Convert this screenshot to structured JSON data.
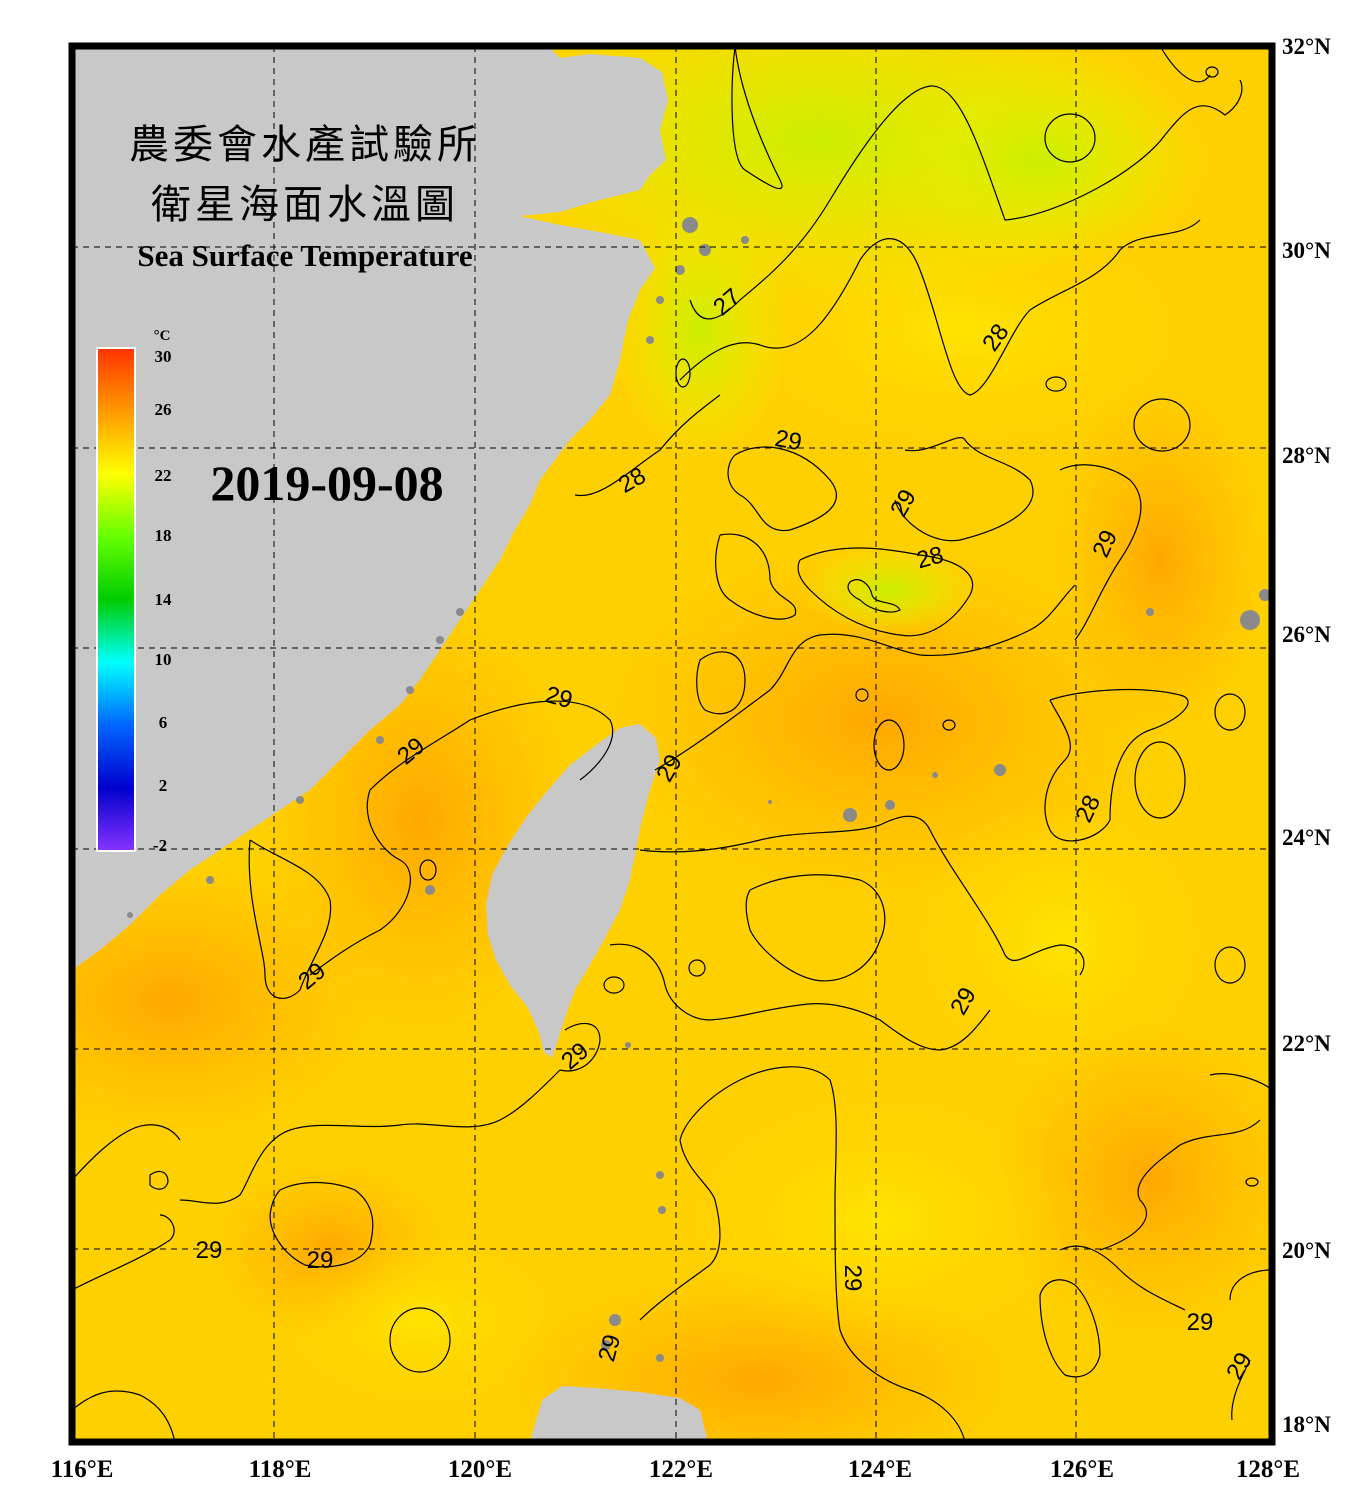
{
  "title": {
    "line1": "農委會水產試驗所",
    "line2": "衛星海面水溫圖",
    "english": "Sea Surface Temperature"
  },
  "date": "2019-09-08",
  "legend": {
    "unit": "°C",
    "ticks": [
      "30",
      "26",
      "22",
      "18",
      "14",
      "10",
      "6",
      "2",
      "-2"
    ],
    "colors": [
      "#ff3300",
      "#ff9900",
      "#ffff00",
      "#66ff00",
      "#00cc00",
      "#00ffff",
      "#0066ff",
      "#0000cc",
      "#8833ff"
    ]
  },
  "axes": {
    "longitude_labels": [
      "116°E",
      "118°E",
      "120°E",
      "122°E",
      "124°E",
      "126°E",
      "128°E"
    ],
    "latitude_labels": [
      "32°N",
      "30°N",
      "28°N",
      "26°N",
      "24°N",
      "22°N",
      "20°N",
      "18°N"
    ]
  },
  "contour_labels": [
    "27",
    "28",
    "28",
    "29",
    "29",
    "28",
    "29",
    "29",
    "29",
    "29",
    "28",
    "29",
    "29",
    "29",
    "29",
    "29",
    "29",
    "29",
    "29",
    "29",
    "29"
  ],
  "colors": {
    "land": "#c8c8c8",
    "sea_warm": "#ffb300",
    "sea_mid": "#ffd000",
    "sea_cool": "#d8f000",
    "frame": "#000000"
  }
}
